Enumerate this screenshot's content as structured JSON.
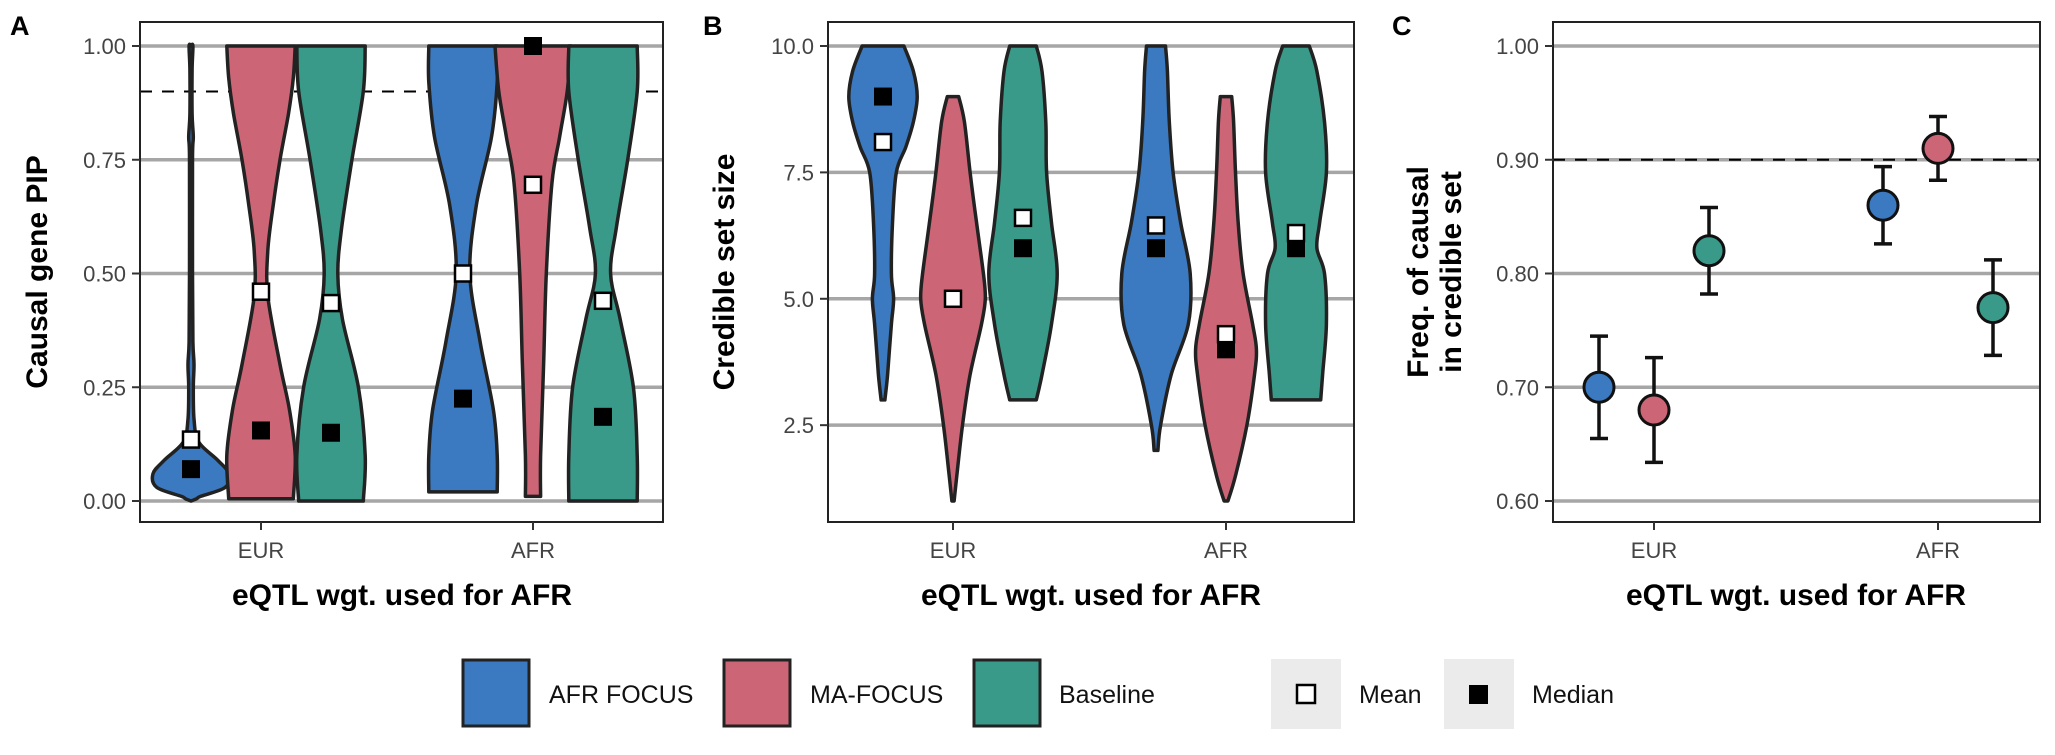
{
  "colors": {
    "AFR FOCUS": "#3b7ac0",
    "MA-FOCUS": "#cc6677",
    "Baseline": "#3a9a89",
    "outline": "#222222",
    "grid": "#a6a6a6"
  },
  "legend": {
    "items": [
      {
        "label": "AFR FOCUS",
        "swatch": "AFR FOCUS"
      },
      {
        "label": "MA-FOCUS",
        "swatch": "MA-FOCUS"
      },
      {
        "label": "Baseline",
        "swatch": "Baseline"
      },
      {
        "label": "Mean",
        "swatch": "mean-square-icon"
      },
      {
        "label": "Median",
        "swatch": "median-square-icon"
      }
    ]
  },
  "chart_data": [
    {
      "panel": "A",
      "type": "violin",
      "xlabel": "eQTL wgt. used for AFR",
      "ylabel": "Causal gene PIP",
      "categories": [
        "EUR",
        "AFR"
      ],
      "ylim": [
        0,
        1
      ],
      "yticks": [
        "0.00",
        "0.25",
        "0.50",
        "0.75",
        "1.00"
      ],
      "reference_line": 0.9,
      "grid": true,
      "series": [
        {
          "name": "AFR FOCUS",
          "mean": [
            0.135,
            0.5
          ],
          "median": [
            0.07,
            0.225
          ]
        },
        {
          "name": "MA-FOCUS",
          "mean": [
            0.46,
            0.695
          ],
          "median": [
            0.155,
            1.0
          ]
        },
        {
          "name": "Baseline",
          "mean": [
            0.435,
            0.44
          ],
          "median": [
            0.15,
            0.185
          ]
        }
      ]
    },
    {
      "panel": "B",
      "type": "violin",
      "xlabel": "eQTL wgt. used for AFR",
      "ylabel": "Credible set size",
      "categories": [
        "EUR",
        "AFR"
      ],
      "ylim": [
        1,
        10
      ],
      "yticks": [
        "2.5",
        "5.0",
        "7.5",
        "10.0"
      ],
      "grid": true,
      "series": [
        {
          "name": "AFR FOCUS",
          "mean": [
            8.1,
            6.45
          ],
          "median": [
            9.0,
            6.0
          ]
        },
        {
          "name": "MA-FOCUS",
          "mean": [
            5.0,
            4.3
          ],
          "median": [
            5.0,
            4.0
          ]
        },
        {
          "name": "Baseline",
          "mean": [
            6.6,
            6.3
          ],
          "median": [
            6.0,
            6.0
          ]
        }
      ]
    },
    {
      "panel": "C",
      "type": "scatter",
      "xlabel": "eQTL wgt. used for AFR",
      "ylabel": "Freq. of causal\nin credible set",
      "ylabel_lines": [
        "Freq. of causal",
        "in credible set"
      ],
      "categories": [
        "EUR",
        "AFR"
      ],
      "ylim": [
        0.6,
        1.0
      ],
      "yticks": [
        "0.60",
        "0.70",
        "0.80",
        "0.90",
        "1.00"
      ],
      "reference_line": 0.9,
      "grid": true,
      "series": [
        {
          "name": "AFR FOCUS",
          "values": [
            0.7,
            0.86
          ],
          "ci_low": [
            0.655,
            0.826
          ],
          "ci_high": [
            0.745,
            0.894
          ]
        },
        {
          "name": "MA-FOCUS",
          "values": [
            0.68,
            0.91
          ],
          "ci_low": [
            0.634,
            0.882
          ],
          "ci_high": [
            0.726,
            0.938
          ]
        },
        {
          "name": "Baseline",
          "values": [
            0.82,
            0.77
          ],
          "ci_low": [
            0.782,
            0.728
          ],
          "ci_high": [
            0.858,
            0.812
          ]
        }
      ]
    }
  ]
}
